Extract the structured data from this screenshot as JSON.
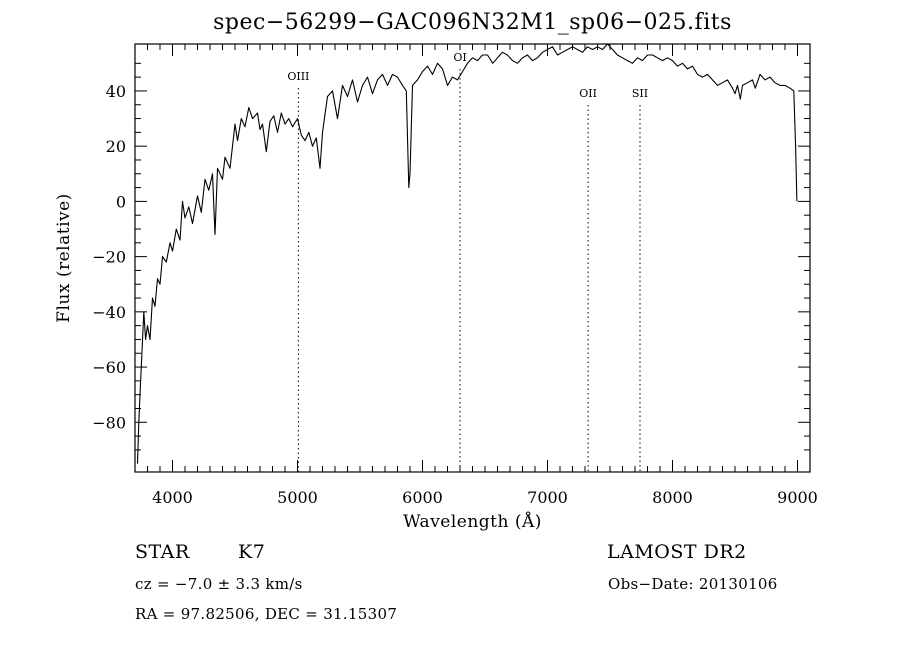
{
  "chart_data": {
    "type": "line",
    "title": "spec−56299−GAC096N32M1_sp06−025.fits",
    "xlabel": "Wavelength (Å)",
    "ylabel": "Flux (relative)",
    "xlim": [
      3700,
      9100
    ],
    "ylim": [
      -98,
      57
    ],
    "x_ticks": [
      "4000",
      "5000",
      "6000",
      "7000",
      "8000",
      "9000"
    ],
    "y_ticks": [
      "−80",
      "−60",
      "−40",
      "−20",
      "0",
      "20",
      "40"
    ],
    "lines": [
      {
        "label": "OIII",
        "x": 5007
      },
      {
        "label": "OI",
        "x": 6300
      },
      {
        "label": "OII",
        "x": 7325
      },
      {
        "label": "SII",
        "x": 7740
      }
    ],
    "series": [
      {
        "color": "#000000",
        "points": [
          [
            3720,
            -95
          ],
          [
            3730,
            -80
          ],
          [
            3740,
            -70
          ],
          [
            3755,
            -55
          ],
          [
            3770,
            -40
          ],
          [
            3785,
            -50
          ],
          [
            3800,
            -45
          ],
          [
            3820,
            -50
          ],
          [
            3840,
            -35
          ],
          [
            3860,
            -38
          ],
          [
            3880,
            -28
          ],
          [
            3900,
            -30
          ],
          [
            3920,
            -20
          ],
          [
            3950,
            -22
          ],
          [
            3980,
            -15
          ],
          [
            4000,
            -18
          ],
          [
            4030,
            -10
          ],
          [
            4060,
            -14
          ],
          [
            4080,
            0
          ],
          [
            4100,
            -6
          ],
          [
            4130,
            -2
          ],
          [
            4160,
            -8
          ],
          [
            4200,
            2
          ],
          [
            4230,
            -4
          ],
          [
            4260,
            8
          ],
          [
            4290,
            4
          ],
          [
            4320,
            10
          ],
          [
            4340,
            -12
          ],
          [
            4360,
            12
          ],
          [
            4400,
            8
          ],
          [
            4420,
            16
          ],
          [
            4460,
            12
          ],
          [
            4480,
            20
          ],
          [
            4500,
            28
          ],
          [
            4520,
            22
          ],
          [
            4550,
            30
          ],
          [
            4580,
            27
          ],
          [
            4610,
            34
          ],
          [
            4640,
            30
          ],
          [
            4680,
            32
          ],
          [
            4700,
            26
          ],
          [
            4720,
            28
          ],
          [
            4750,
            18
          ],
          [
            4780,
            29
          ],
          [
            4810,
            31
          ],
          [
            4840,
            25
          ],
          [
            4870,
            32
          ],
          [
            4900,
            28
          ],
          [
            4930,
            30
          ],
          [
            4960,
            27
          ],
          [
            5000,
            30
          ],
          [
            5030,
            24
          ],
          [
            5060,
            22
          ],
          [
            5090,
            25
          ],
          [
            5120,
            20
          ],
          [
            5150,
            23
          ],
          [
            5180,
            12
          ],
          [
            5200,
            25
          ],
          [
            5240,
            38
          ],
          [
            5280,
            40
          ],
          [
            5320,
            30
          ],
          [
            5360,
            42
          ],
          [
            5400,
            38
          ],
          [
            5440,
            44
          ],
          [
            5480,
            36
          ],
          [
            5520,
            42
          ],
          [
            5560,
            45
          ],
          [
            5600,
            39
          ],
          [
            5640,
            44
          ],
          [
            5680,
            46
          ],
          [
            5720,
            42
          ],
          [
            5760,
            46
          ],
          [
            5800,
            45
          ],
          [
            5840,
            42
          ],
          [
            5870,
            40
          ],
          [
            5890,
            5
          ],
          [
            5900,
            10
          ],
          [
            5920,
            42
          ],
          [
            5960,
            44
          ],
          [
            6000,
            47
          ],
          [
            6040,
            49
          ],
          [
            6080,
            46
          ],
          [
            6120,
            50
          ],
          [
            6160,
            48
          ],
          [
            6200,
            42
          ],
          [
            6240,
            45
          ],
          [
            6280,
            44
          ],
          [
            6320,
            47
          ],
          [
            6360,
            50
          ],
          [
            6400,
            52
          ],
          [
            6440,
            51
          ],
          [
            6480,
            53
          ],
          [
            6520,
            53
          ],
          [
            6562,
            50
          ],
          [
            6600,
            52
          ],
          [
            6640,
            54
          ],
          [
            6680,
            53
          ],
          [
            6720,
            51
          ],
          [
            6760,
            50
          ],
          [
            6800,
            52
          ],
          [
            6840,
            53
          ],
          [
            6880,
            51
          ],
          [
            6920,
            52
          ],
          [
            6960,
            54
          ],
          [
            7000,
            55
          ],
          [
            7040,
            56
          ],
          [
            7080,
            53
          ],
          [
            7120,
            54
          ],
          [
            7160,
            55
          ],
          [
            7200,
            56
          ],
          [
            7240,
            55
          ],
          [
            7280,
            54
          ],
          [
            7320,
            56
          ],
          [
            7360,
            55
          ],
          [
            7400,
            56
          ],
          [
            7440,
            55
          ],
          [
            7480,
            57
          ],
          [
            7520,
            55
          ],
          [
            7560,
            53
          ],
          [
            7600,
            52
          ],
          [
            7640,
            51
          ],
          [
            7680,
            50
          ],
          [
            7720,
            52
          ],
          [
            7760,
            51
          ],
          [
            7800,
            53
          ],
          [
            7840,
            53
          ],
          [
            7880,
            52
          ],
          [
            7920,
            51
          ],
          [
            7960,
            52
          ],
          [
            8000,
            51
          ],
          [
            8040,
            49
          ],
          [
            8080,
            50
          ],
          [
            8120,
            48
          ],
          [
            8160,
            49
          ],
          [
            8200,
            46
          ],
          [
            8240,
            45
          ],
          [
            8280,
            46
          ],
          [
            8320,
            44
          ],
          [
            8360,
            42
          ],
          [
            8400,
            43
          ],
          [
            8440,
            44
          ],
          [
            8480,
            41
          ],
          [
            8500,
            39
          ],
          [
            8520,
            42
          ],
          [
            8542,
            37
          ],
          [
            8560,
            42
          ],
          [
            8600,
            43
          ],
          [
            8640,
            44
          ],
          [
            8662,
            41
          ],
          [
            8700,
            46
          ],
          [
            8740,
            44
          ],
          [
            8780,
            45
          ],
          [
            8820,
            43
          ],
          [
            8860,
            42
          ],
          [
            8900,
            42
          ],
          [
            8940,
            41
          ],
          [
            8970,
            40
          ],
          [
            8985,
            20
          ],
          [
            8995,
            0
          ]
        ]
      }
    ]
  },
  "info": {
    "object_class": "STAR",
    "subclass": "K7",
    "survey": "LAMOST DR2",
    "cz": "cz = −7.0 ± 3.3 km/s",
    "obs_date": "Obs−Date: 20130106",
    "coords": "RA =  97.82506, DEC =  31.15307"
  }
}
